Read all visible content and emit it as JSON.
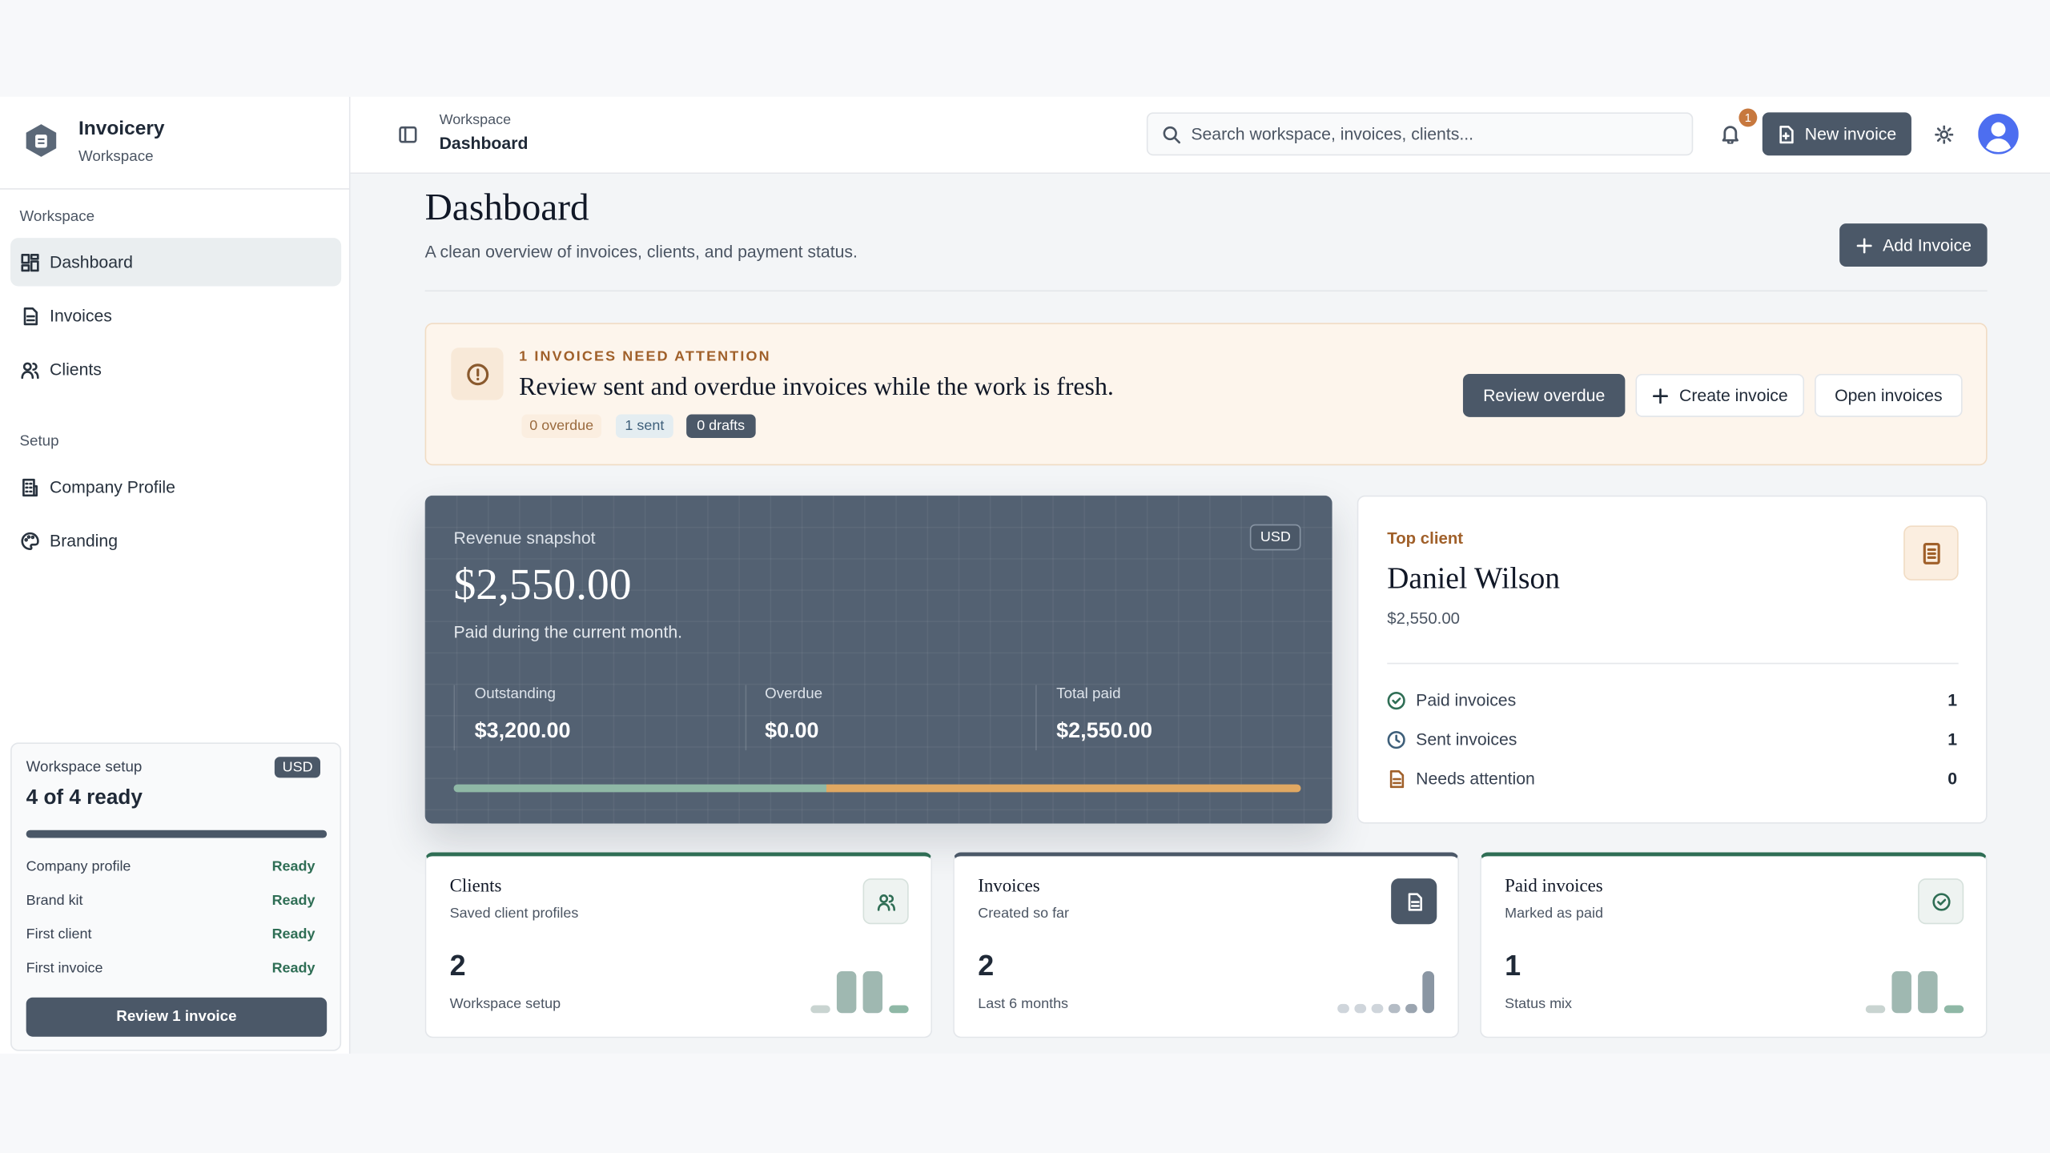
{
  "sidebar": {
    "brand": {
      "name": "Invoicery",
      "subtitle": "Workspace"
    },
    "sections": [
      {
        "label": "Workspace",
        "items": [
          "Dashboard",
          "Invoices",
          "Clients"
        ]
      },
      {
        "label": "Setup",
        "items": [
          "Company Profile",
          "Branding"
        ]
      }
    ],
    "setup": {
      "title": "Workspace setup",
      "badge": "USD",
      "status": "4 of 4 ready",
      "items": [
        {
          "label": "Company profile",
          "status": "Ready"
        },
        {
          "label": "Brand kit",
          "status": "Ready"
        },
        {
          "label": "First client",
          "status": "Ready"
        },
        {
          "label": "First invoice",
          "status": "Ready"
        }
      ],
      "button": "Review 1 invoice"
    }
  },
  "header": {
    "breadcrumb": {
      "parent": "Workspace",
      "current": "Dashboard"
    },
    "search_placeholder": "Search workspace, invoices, clients...",
    "notification_count": 1,
    "new_button": "New invoice"
  },
  "page": {
    "title": "Dashboard",
    "subtitle": "A clean overview of invoices, clients, and payment status.",
    "add_button": "Add Invoice"
  },
  "alert": {
    "heading": "1 INVOICES NEED ATTENTION",
    "message": "Review sent and overdue invoices while the work is fresh.",
    "chips": [
      "0 overdue",
      "1 sent",
      "0 drafts"
    ],
    "actions": [
      "Review overdue",
      "Create invoice",
      "Open invoices"
    ]
  },
  "revenue": {
    "label": "Revenue snapshot",
    "currency": "USD",
    "amount": "$2,550.00",
    "note": "Paid during the current month.",
    "stats": [
      {
        "label": "Outstanding",
        "value": "$3,200.00"
      },
      {
        "label": "Overdue",
        "value": "$0.00"
      },
      {
        "label": "Total paid",
        "value": "$2,550.00"
      }
    ]
  },
  "top_client": {
    "label": "Top client",
    "name": "Daniel Wilson",
    "amount": "$2,550.00",
    "rows": [
      {
        "label": "Paid invoices",
        "value": 1
      },
      {
        "label": "Sent invoices",
        "value": 1
      },
      {
        "label": "Needs attention",
        "value": 0
      }
    ]
  },
  "stat_cards": [
    {
      "title": "Clients",
      "subtitle": "Saved client profiles",
      "value": 2,
      "caption": "Workspace setup"
    },
    {
      "title": "Invoices",
      "subtitle": "Created so far",
      "value": 2,
      "caption": "Last 6 months"
    },
    {
      "title": "Paid invoices",
      "subtitle": "Marked as paid",
      "value": 1,
      "caption": "Status mix"
    }
  ]
}
